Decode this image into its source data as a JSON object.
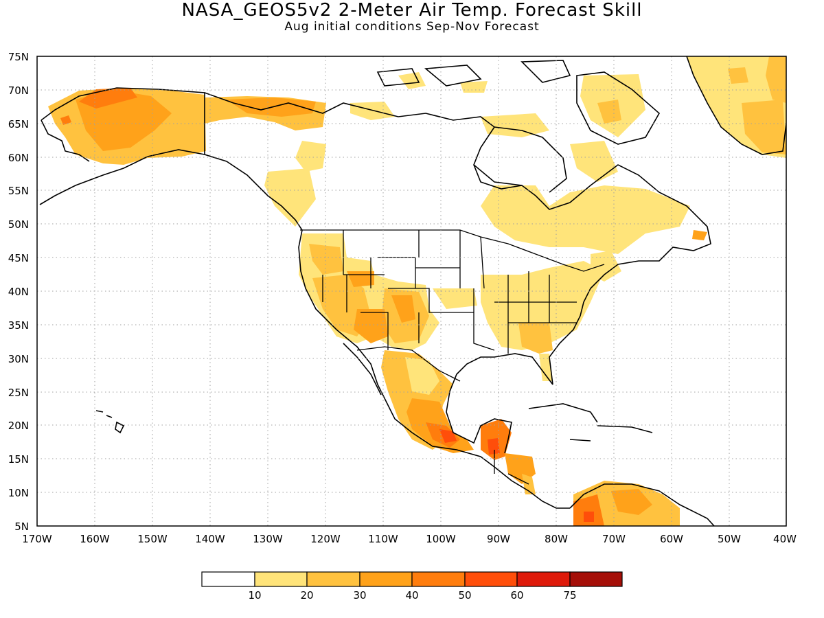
{
  "title": "NASA_GEOS5v2 2-Meter Air Temp. Forecast Skill",
  "subtitle": "Aug initial conditions  Sep-Nov Forecast",
  "map": {
    "lat_labels": [
      "75N",
      "70N",
      "65N",
      "60N",
      "55N",
      "50N",
      "45N",
      "40N",
      "35N",
      "30N",
      "25N",
      "20N",
      "15N",
      "10N",
      "5N"
    ],
    "lon_labels": [
      "170W",
      "160W",
      "150W",
      "140W",
      "130W",
      "120W",
      "110W",
      "100W",
      "90W",
      "80W",
      "70W",
      "60W",
      "50W",
      "40W"
    ]
  },
  "legend": {
    "colors": [
      "#ffffff",
      "#ffe47a",
      "#ffc23f",
      "#ffa21a",
      "#ff7d0d",
      "#ff4e0a",
      "#de1a0a",
      "#a50f08"
    ],
    "labels": [
      "10",
      "20",
      "30",
      "40",
      "50",
      "60",
      "75"
    ]
  }
}
